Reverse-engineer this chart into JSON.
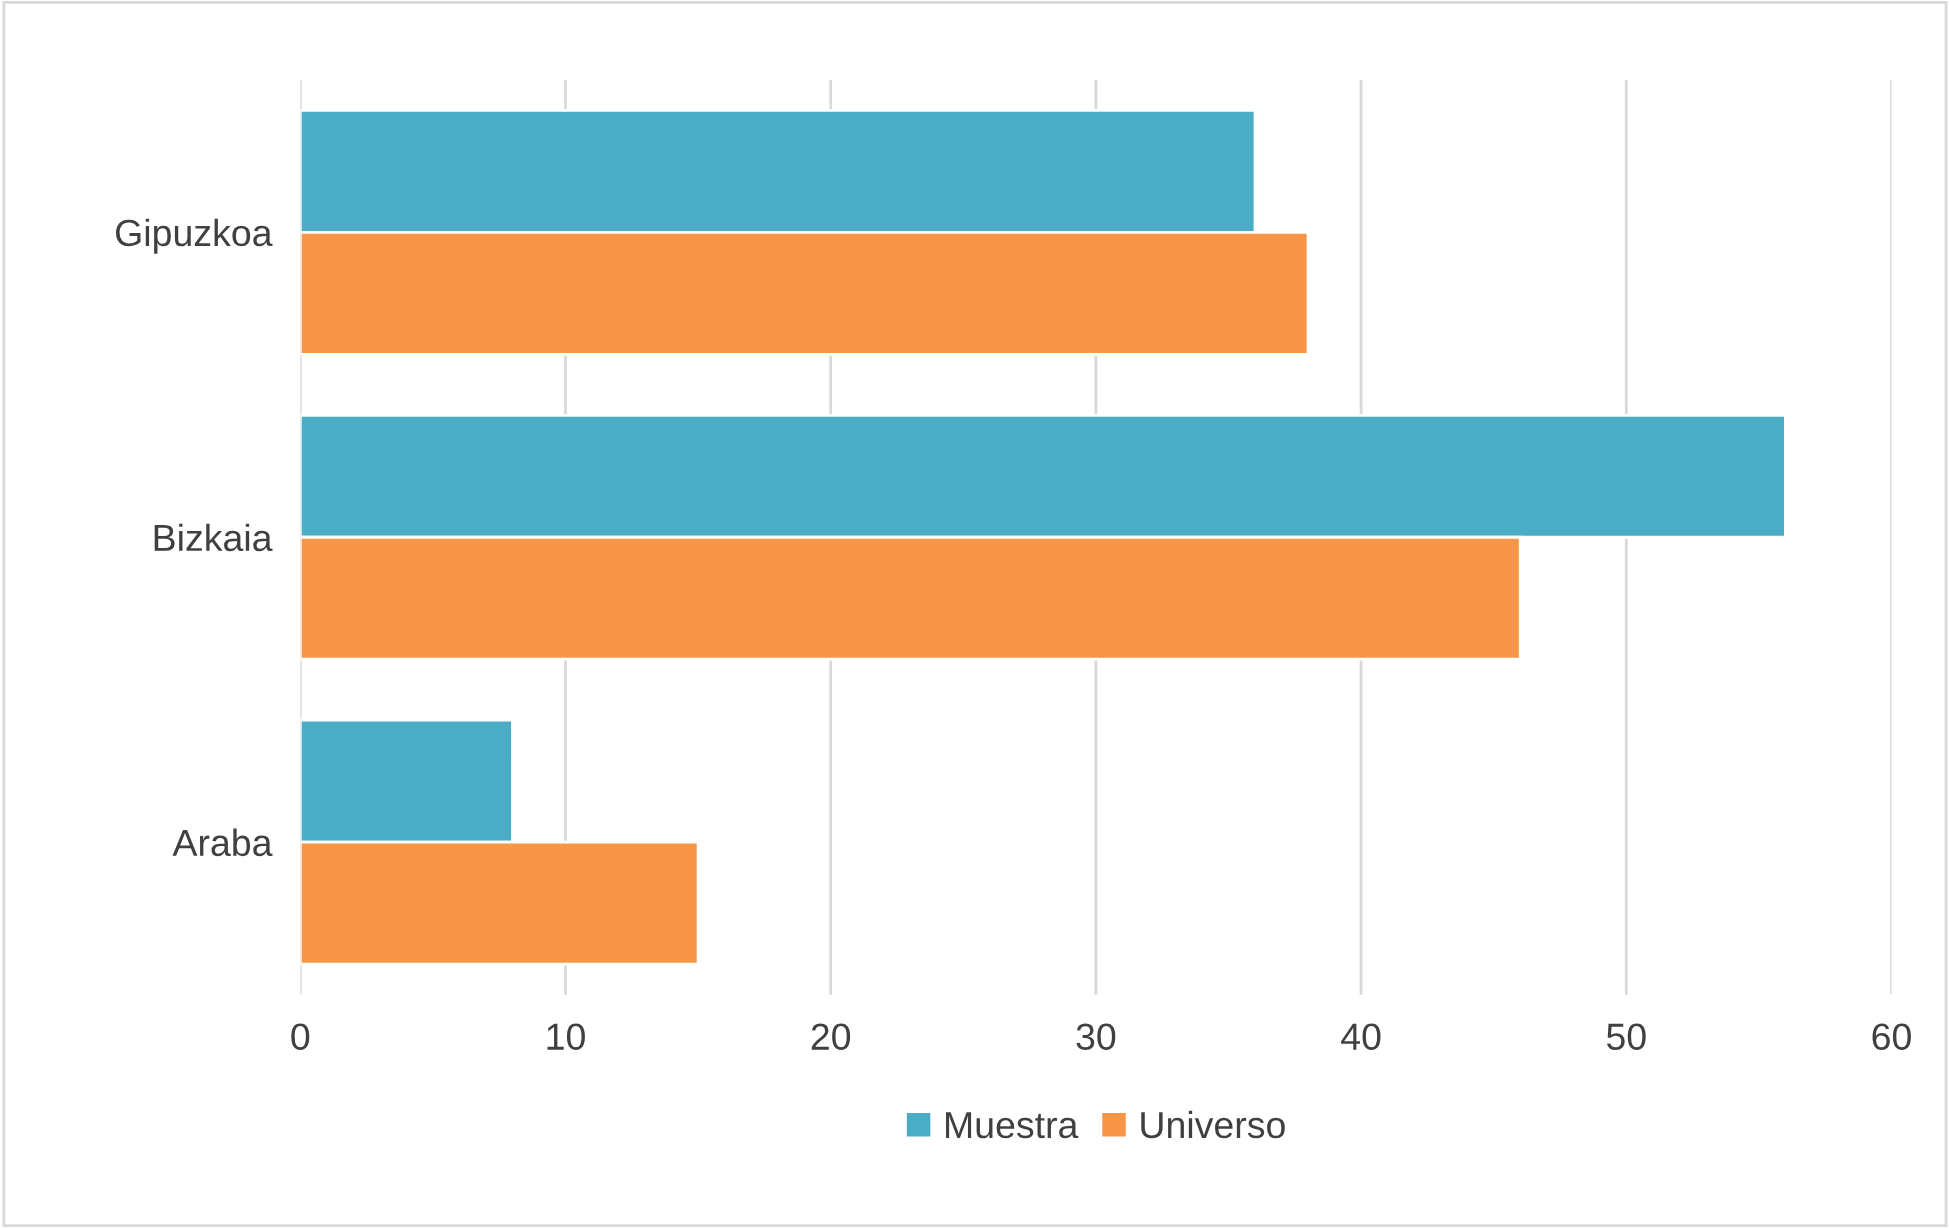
{
  "chart_data": {
    "type": "bar",
    "orientation": "horizontal",
    "categories": [
      "Gipuzkoa",
      "Bizkaia",
      "Araba"
    ],
    "series": [
      {
        "name": "Muestra",
        "color": "#4bacc6",
        "values": [
          36,
          56,
          8
        ]
      },
      {
        "name": "Universo",
        "color": "#f79646",
        "values": [
          38,
          46,
          15
        ]
      }
    ],
    "xlim": [
      0,
      60
    ],
    "xticks": [
      0,
      10,
      20,
      30,
      40,
      50,
      60
    ],
    "grid": "x",
    "legend": "bottom"
  }
}
